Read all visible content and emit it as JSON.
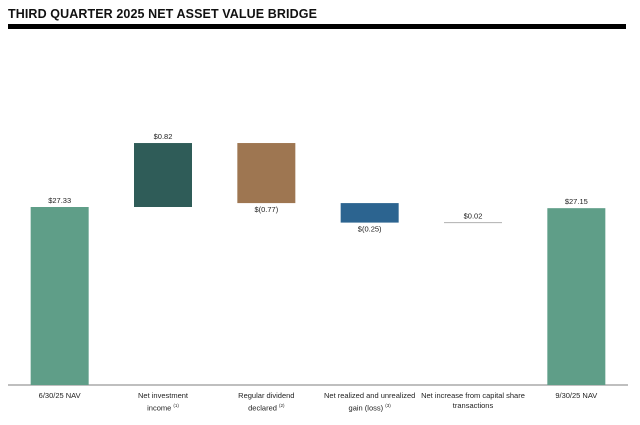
{
  "title": "THIRD QUARTER 2025 NET ASSET VALUE BRIDGE",
  "chart_data": {
    "type": "bar",
    "subtype": "waterfall",
    "title": "THIRD QUARTER 2025 NET ASSET VALUE BRIDGE",
    "categories": [
      "6/30/25 NAV",
      "Net investment income (1)",
      "Regular dividend declared (2)",
      "Net realized and unrealized gain (loss) (3)",
      "Net increase from capital share transactions",
      "9/30/25 NAV"
    ],
    "values": [
      27.33,
      0.82,
      -0.77,
      -0.25,
      0.02,
      27.15
    ],
    "bar_kinds": [
      "total",
      "delta",
      "delta",
      "delta",
      "delta",
      "total"
    ],
    "data_labels": [
      "$27.33",
      "$0.82",
      "$(0.77)",
      "$(0.25)",
      "$0.02",
      "$27.15"
    ],
    "category_labels": [
      {
        "text": "6/30/25 NAV",
        "note": ""
      },
      {
        "text": "Net investment\nincome",
        "note": "(1)"
      },
      {
        "text": "Regular dividend\ndeclared",
        "note": "(2)"
      },
      {
        "text": "Net realized and unrealized\ngain (loss)",
        "note": "(3)"
      },
      {
        "text": "Net increase from capital share\ntransactions",
        "note": ""
      },
      {
        "text": "9/30/25 NAV",
        "note": ""
      }
    ],
    "colors": [
      "#5f9e88",
      "#2f5c58",
      "#9e7651",
      "#2c6490",
      "#b0b0b0",
      "#5f9e88"
    ],
    "ylabel": "",
    "xlabel": "",
    "grid": false
  }
}
